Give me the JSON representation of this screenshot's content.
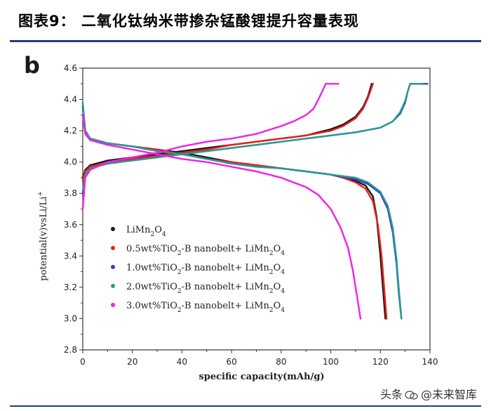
{
  "header": {
    "title": "图表9：  二氧化钛纳米带掺杂锰酸锂提升容量表现"
  },
  "watermark": {
    "text_left": "头条",
    "text_right": "@未来智库"
  },
  "chart_data": {
    "type": "line",
    "panel_label": "b",
    "xlabel": "specific capacity(mAh/g)",
    "ylabel": "potential(v)vsLi/Li",
    "ylabel_sup": "+",
    "xlim": [
      0,
      140
    ],
    "ylim": [
      2.8,
      4.6
    ],
    "xticks": [
      "0",
      "20",
      "40",
      "60",
      "80",
      "100",
      "120",
      "140"
    ],
    "yticks": [
      "2.8",
      "3.0",
      "3.2",
      "3.4",
      "3.6",
      "3.8",
      "4.0",
      "4.2",
      "4.4",
      "4.6"
    ],
    "grid": false,
    "legend_position": "lower-left",
    "series": [
      {
        "name": "LiMn2O4",
        "legend": {
          "base": "LiMn",
          "sub1": "2",
          "mid": "O",
          "sub2": "4"
        },
        "color": "#1a1a1a",
        "charge": {
          "x": [
            0,
            1,
            3,
            10,
            20,
            30,
            40,
            50,
            60,
            70,
            80,
            90,
            100,
            105,
            110,
            113,
            115,
            116.5
          ],
          "y": [
            3.9,
            3.95,
            3.98,
            4.01,
            4.03,
            4.05,
            4.07,
            4.09,
            4.11,
            4.13,
            4.15,
            4.17,
            4.21,
            4.24,
            4.29,
            4.35,
            4.42,
            4.5
          ]
        },
        "discharge": {
          "x": [
            0,
            1,
            3,
            10,
            20,
            30,
            40,
            50,
            60,
            70,
            80,
            90,
            100,
            105,
            110,
            114,
            117,
            118.5,
            120,
            121,
            122
          ],
          "y": [
            4.35,
            4.2,
            4.15,
            4.12,
            4.1,
            4.08,
            4.06,
            4.03,
            4.0,
            3.98,
            3.96,
            3.94,
            3.92,
            3.9,
            3.88,
            3.85,
            3.78,
            3.65,
            3.4,
            3.2,
            3.0
          ]
        }
      },
      {
        "name": "0.5wt%TiO2-B nanobelt+ LiMn2O4",
        "legend": {
          "base": "0.5wt%TiO",
          "sub1": "2",
          "mid": "-B nanobelt+ LiMn",
          "sub2": "2",
          "mid2": "O",
          "sub3": "4"
        },
        "color": "#e8201a",
        "charge": {
          "x": [
            0,
            1,
            3,
            10,
            20,
            30,
            40,
            50,
            60,
            70,
            80,
            90,
            100,
            105,
            110,
            113,
            115,
            117
          ],
          "y": [
            3.88,
            3.94,
            3.97,
            4.0,
            4.02,
            4.04,
            4.06,
            4.08,
            4.11,
            4.13,
            4.15,
            4.17,
            4.2,
            4.23,
            4.28,
            4.34,
            4.41,
            4.5
          ]
        },
        "discharge": {
          "x": [
            0,
            1,
            3,
            10,
            20,
            30,
            40,
            50,
            60,
            70,
            80,
            90,
            100,
            105,
            110,
            114,
            117,
            119,
            120.5,
            121.5,
            122.5
          ],
          "y": [
            4.35,
            4.2,
            4.15,
            4.12,
            4.1,
            4.08,
            4.05,
            4.02,
            4.0,
            3.98,
            3.96,
            3.94,
            3.92,
            3.9,
            3.87,
            3.83,
            3.75,
            3.6,
            3.4,
            3.2,
            3.0
          ]
        }
      },
      {
        "name": "1.0wt%TiO2-B nanobelt+ LiMn2O4",
        "legend": {
          "base": "1.0wt%TiO",
          "sub1": "2",
          "mid": "-B nanobelt+ LiMn",
          "sub2": "2",
          "mid2": "O",
          "sub3": "4"
        },
        "color": "#2a3fd6",
        "charge": {
          "x": [
            0,
            1,
            3,
            10,
            20,
            30,
            40,
            50,
            60,
            70,
            80,
            90,
            100,
            110,
            120,
            125,
            128,
            130,
            131,
            132,
            139
          ],
          "y": [
            3.8,
            3.92,
            3.96,
            3.99,
            4.01,
            4.03,
            4.05,
            4.07,
            4.09,
            4.11,
            4.13,
            4.15,
            4.17,
            4.19,
            4.22,
            4.26,
            4.31,
            4.38,
            4.45,
            4.5,
            4.5
          ]
        },
        "discharge": {
          "x": [
            0,
            1,
            3,
            10,
            20,
            30,
            40,
            50,
            60,
            70,
            80,
            90,
            100,
            110,
            115,
            120,
            123,
            125,
            126.5,
            127.5,
            128.5
          ],
          "y": [
            4.36,
            4.2,
            4.15,
            4.12,
            4.1,
            4.07,
            4.05,
            4.02,
            3.99,
            3.97,
            3.96,
            3.94,
            3.92,
            3.89,
            3.86,
            3.8,
            3.7,
            3.55,
            3.35,
            3.15,
            3.0
          ]
        }
      },
      {
        "name": "2.0wt%TiO2-B nanobelt+ LiMn2O4",
        "legend": {
          "base": "2.0wt%TiO",
          "sub1": "2",
          "mid": "-B nanobelt+ LiMn",
          "sub2": "2",
          "mid2": "O",
          "sub3": "4"
        },
        "color": "#2a9a92",
        "charge": {
          "x": [
            0,
            1,
            3,
            10,
            20,
            30,
            40,
            50,
            60,
            70,
            80,
            90,
            100,
            110,
            120,
            125,
            128,
            130,
            131,
            132,
            137
          ],
          "y": [
            3.82,
            3.92,
            3.96,
            3.99,
            4.01,
            4.03,
            4.05,
            4.07,
            4.09,
            4.11,
            4.13,
            4.15,
            4.17,
            4.19,
            4.22,
            4.26,
            4.32,
            4.39,
            4.45,
            4.5,
            4.5
          ]
        },
        "discharge": {
          "x": [
            0,
            1,
            3,
            10,
            20,
            30,
            40,
            50,
            60,
            70,
            80,
            90,
            100,
            110,
            115,
            120,
            123,
            125,
            126.5,
            127.5,
            128.5
          ],
          "y": [
            4.38,
            4.2,
            4.15,
            4.12,
            4.1,
            4.07,
            4.05,
            4.02,
            3.99,
            3.97,
            3.96,
            3.94,
            3.92,
            3.9,
            3.87,
            3.81,
            3.72,
            3.58,
            3.38,
            3.18,
            3.0
          ]
        }
      },
      {
        "name": "3.0wt%TiO2-B nanobelt+ LiMn2O4",
        "legend": {
          "base": "3.0wt%TiO",
          "sub1": "2",
          "mid": "-B nanobelt+ LiMn",
          "sub2": "2",
          "mid2": "O",
          "sub3": "4"
        },
        "color": "#f020e8",
        "charge": {
          "x": [
            0,
            1,
            3,
            10,
            20,
            30,
            40,
            50,
            60,
            70,
            80,
            85,
            90,
            93,
            95,
            96.5,
            98,
            103
          ],
          "y": [
            3.7,
            3.9,
            3.95,
            4.0,
            4.03,
            4.06,
            4.1,
            4.13,
            4.15,
            4.18,
            4.23,
            4.26,
            4.3,
            4.34,
            4.4,
            4.45,
            4.5,
            4.5
          ]
        },
        "discharge": {
          "x": [
            0,
            1,
            3,
            10,
            20,
            30,
            40,
            50,
            60,
            70,
            80,
            90,
            95,
            100,
            104,
            107,
            109,
            110.5,
            111.5,
            112
          ],
          "y": [
            4.3,
            4.18,
            4.14,
            4.11,
            4.08,
            4.05,
            4.02,
            4.0,
            3.97,
            3.94,
            3.9,
            3.84,
            3.79,
            3.7,
            3.58,
            3.45,
            3.3,
            3.15,
            3.05,
            3.0
          ]
        }
      }
    ]
  }
}
